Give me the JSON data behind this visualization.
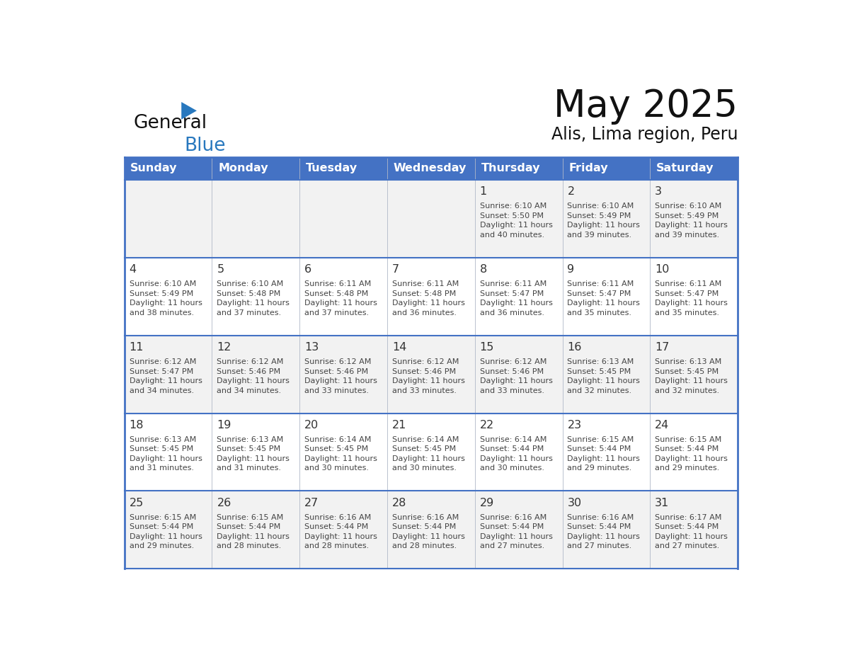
{
  "title": "May 2025",
  "subtitle": "Alis, Lima region, Peru",
  "days_of_week": [
    "Sunday",
    "Monday",
    "Tuesday",
    "Wednesday",
    "Thursday",
    "Friday",
    "Saturday"
  ],
  "header_bg": "#4472C4",
  "header_text": "#FFFFFF",
  "row_odd_bg": "#F2F2F2",
  "row_even_bg": "#FFFFFF",
  "cell_border_color": "#4472C4",
  "sep_line_color": "#4472C4",
  "day_num_color": "#333333",
  "info_color": "#444444",
  "title_color": "#111111",
  "logo_general_color": "#111111",
  "logo_blue_color": "#2878BE",
  "calendar_data": [
    [
      {
        "day": "",
        "sunrise": "",
        "sunset": "",
        "daylight": ""
      },
      {
        "day": "",
        "sunrise": "",
        "sunset": "",
        "daylight": ""
      },
      {
        "day": "",
        "sunrise": "",
        "sunset": "",
        "daylight": ""
      },
      {
        "day": "",
        "sunrise": "",
        "sunset": "",
        "daylight": ""
      },
      {
        "day": "1",
        "sunrise": "6:10 AM",
        "sunset": "5:50 PM",
        "daylight": "11 hours and 40 minutes."
      },
      {
        "day": "2",
        "sunrise": "6:10 AM",
        "sunset": "5:49 PM",
        "daylight": "11 hours and 39 minutes."
      },
      {
        "day": "3",
        "sunrise": "6:10 AM",
        "sunset": "5:49 PM",
        "daylight": "11 hours and 39 minutes."
      }
    ],
    [
      {
        "day": "4",
        "sunrise": "6:10 AM",
        "sunset": "5:49 PM",
        "daylight": "11 hours and 38 minutes."
      },
      {
        "day": "5",
        "sunrise": "6:10 AM",
        "sunset": "5:48 PM",
        "daylight": "11 hours and 37 minutes."
      },
      {
        "day": "6",
        "sunrise": "6:11 AM",
        "sunset": "5:48 PM",
        "daylight": "11 hours and 37 minutes."
      },
      {
        "day": "7",
        "sunrise": "6:11 AM",
        "sunset": "5:48 PM",
        "daylight": "11 hours and 36 minutes."
      },
      {
        "day": "8",
        "sunrise": "6:11 AM",
        "sunset": "5:47 PM",
        "daylight": "11 hours and 36 minutes."
      },
      {
        "day": "9",
        "sunrise": "6:11 AM",
        "sunset": "5:47 PM",
        "daylight": "11 hours and 35 minutes."
      },
      {
        "day": "10",
        "sunrise": "6:11 AM",
        "sunset": "5:47 PM",
        "daylight": "11 hours and 35 minutes."
      }
    ],
    [
      {
        "day": "11",
        "sunrise": "6:12 AM",
        "sunset": "5:47 PM",
        "daylight": "11 hours and 34 minutes."
      },
      {
        "day": "12",
        "sunrise": "6:12 AM",
        "sunset": "5:46 PM",
        "daylight": "11 hours and 34 minutes."
      },
      {
        "day": "13",
        "sunrise": "6:12 AM",
        "sunset": "5:46 PM",
        "daylight": "11 hours and 33 minutes."
      },
      {
        "day": "14",
        "sunrise": "6:12 AM",
        "sunset": "5:46 PM",
        "daylight": "11 hours and 33 minutes."
      },
      {
        "day": "15",
        "sunrise": "6:12 AM",
        "sunset": "5:46 PM",
        "daylight": "11 hours and 33 minutes."
      },
      {
        "day": "16",
        "sunrise": "6:13 AM",
        "sunset": "5:45 PM",
        "daylight": "11 hours and 32 minutes."
      },
      {
        "day": "17",
        "sunrise": "6:13 AM",
        "sunset": "5:45 PM",
        "daylight": "11 hours and 32 minutes."
      }
    ],
    [
      {
        "day": "18",
        "sunrise": "6:13 AM",
        "sunset": "5:45 PM",
        "daylight": "11 hours and 31 minutes."
      },
      {
        "day": "19",
        "sunrise": "6:13 AM",
        "sunset": "5:45 PM",
        "daylight": "11 hours and 31 minutes."
      },
      {
        "day": "20",
        "sunrise": "6:14 AM",
        "sunset": "5:45 PM",
        "daylight": "11 hours and 30 minutes."
      },
      {
        "day": "21",
        "sunrise": "6:14 AM",
        "sunset": "5:45 PM",
        "daylight": "11 hours and 30 minutes."
      },
      {
        "day": "22",
        "sunrise": "6:14 AM",
        "sunset": "5:44 PM",
        "daylight": "11 hours and 30 minutes."
      },
      {
        "day": "23",
        "sunrise": "6:15 AM",
        "sunset": "5:44 PM",
        "daylight": "11 hours and 29 minutes."
      },
      {
        "day": "24",
        "sunrise": "6:15 AM",
        "sunset": "5:44 PM",
        "daylight": "11 hours and 29 minutes."
      }
    ],
    [
      {
        "day": "25",
        "sunrise": "6:15 AM",
        "sunset": "5:44 PM",
        "daylight": "11 hours and 29 minutes."
      },
      {
        "day": "26",
        "sunrise": "6:15 AM",
        "sunset": "5:44 PM",
        "daylight": "11 hours and 28 minutes."
      },
      {
        "day": "27",
        "sunrise": "6:16 AM",
        "sunset": "5:44 PM",
        "daylight": "11 hours and 28 minutes."
      },
      {
        "day": "28",
        "sunrise": "6:16 AM",
        "sunset": "5:44 PM",
        "daylight": "11 hours and 28 minutes."
      },
      {
        "day": "29",
        "sunrise": "6:16 AM",
        "sunset": "5:44 PM",
        "daylight": "11 hours and 27 minutes."
      },
      {
        "day": "30",
        "sunrise": "6:16 AM",
        "sunset": "5:44 PM",
        "daylight": "11 hours and 27 minutes."
      },
      {
        "day": "31",
        "sunrise": "6:17 AM",
        "sunset": "5:44 PM",
        "daylight": "11 hours and 27 minutes."
      }
    ]
  ]
}
